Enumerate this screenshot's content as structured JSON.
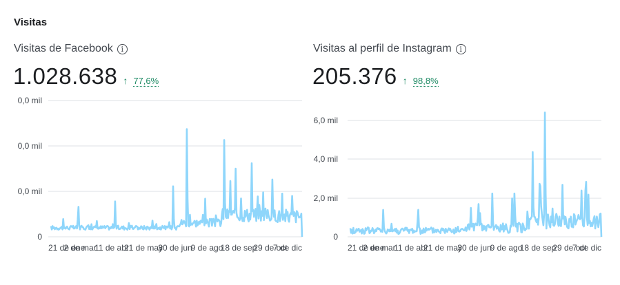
{
  "section": {
    "title": "Visitas"
  },
  "facebook": {
    "label": "Visitas de Facebook",
    "info_icon": "info-icon",
    "value": "1.028.638",
    "trend_icon": "arrow-up-icon",
    "change": "77,6%",
    "color": "#8fd6fb"
  },
  "instagram": {
    "label": "Visitas al perfil de Instagram",
    "info_icon": "info-icon",
    "value": "205.376",
    "trend_icon": "arrow-up-icon",
    "change": "98,8%",
    "color": "#8fd6fb"
  },
  "colors": {
    "positive": "#1e8a64",
    "line": "#8fd6fb",
    "grid": "#e4e6eb",
    "text": "#1c1e21",
    "muted": "#444950"
  },
  "chart_data": [
    {
      "type": "line",
      "title": "Visitas de Facebook",
      "yticks": [
        "0",
        "0,0 mil",
        "0,0 mil",
        "0,0 mil"
      ],
      "xticks": [
        "21 de ene",
        "2 de mar",
        "11 de abr",
        "21 de may",
        "30 de jun",
        "9 de ago",
        "18 de sep",
        "29 de oct",
        "7 de dic"
      ],
      "grid": true,
      "series": [
        {
          "name": "Visitas de Facebook",
          "peaks": [
            {
              "pos": 0.11,
              "rel": 0.22
            },
            {
              "pos": 0.255,
              "rel": 0.26
            },
            {
              "pos": 0.485,
              "rel": 0.37
            },
            {
              "pos": 0.54,
              "rel": 0.79
            },
            {
              "pos": 0.615,
              "rel": 0.28
            },
            {
              "pos": 0.69,
              "rel": 0.71
            },
            {
              "pos": 0.715,
              "rel": 0.41
            },
            {
              "pos": 0.735,
              "rel": 0.5
            },
            {
              "pos": 0.8,
              "rel": 0.54
            },
            {
              "pos": 0.88,
              "rel": 0.42
            },
            {
              "pos": 0.96,
              "rel": 0.3
            }
          ]
        }
      ]
    },
    {
      "type": "line",
      "title": "Visitas al perfil de Instagram",
      "yticks": [
        "0",
        "2,0 mil",
        "4,0 mil",
        "6,0 mil"
      ],
      "xticks": [
        "21 de ene",
        "2 de mar",
        "11 de abr",
        "21 de may",
        "30 de jun",
        "9 de ago",
        "18 de sep",
        "29 de oct",
        "7 de dic"
      ],
      "ylim": [
        0,
        6500
      ],
      "grid": true,
      "series": [
        {
          "name": "Visitas al perfil de Instagram",
          "peaks": [
            {
              "pos": 0.13,
              "value": 1400
            },
            {
              "pos": 0.27,
              "value": 1400
            },
            {
              "pos": 0.48,
              "value": 1500
            },
            {
              "pos": 0.51,
              "value": 1700
            },
            {
              "pos": 0.565,
              "value": 2250
            },
            {
              "pos": 0.645,
              "value": 2000
            },
            {
              "pos": 0.655,
              "value": 2250
            },
            {
              "pos": 0.725,
              "value": 4400
            },
            {
              "pos": 0.755,
              "value": 2750
            },
            {
              "pos": 0.775,
              "value": 6450
            },
            {
              "pos": 0.845,
              "value": 2700
            },
            {
              "pos": 0.92,
              "value": 2400
            },
            {
              "pos": 0.94,
              "value": 2850
            }
          ]
        }
      ]
    }
  ]
}
